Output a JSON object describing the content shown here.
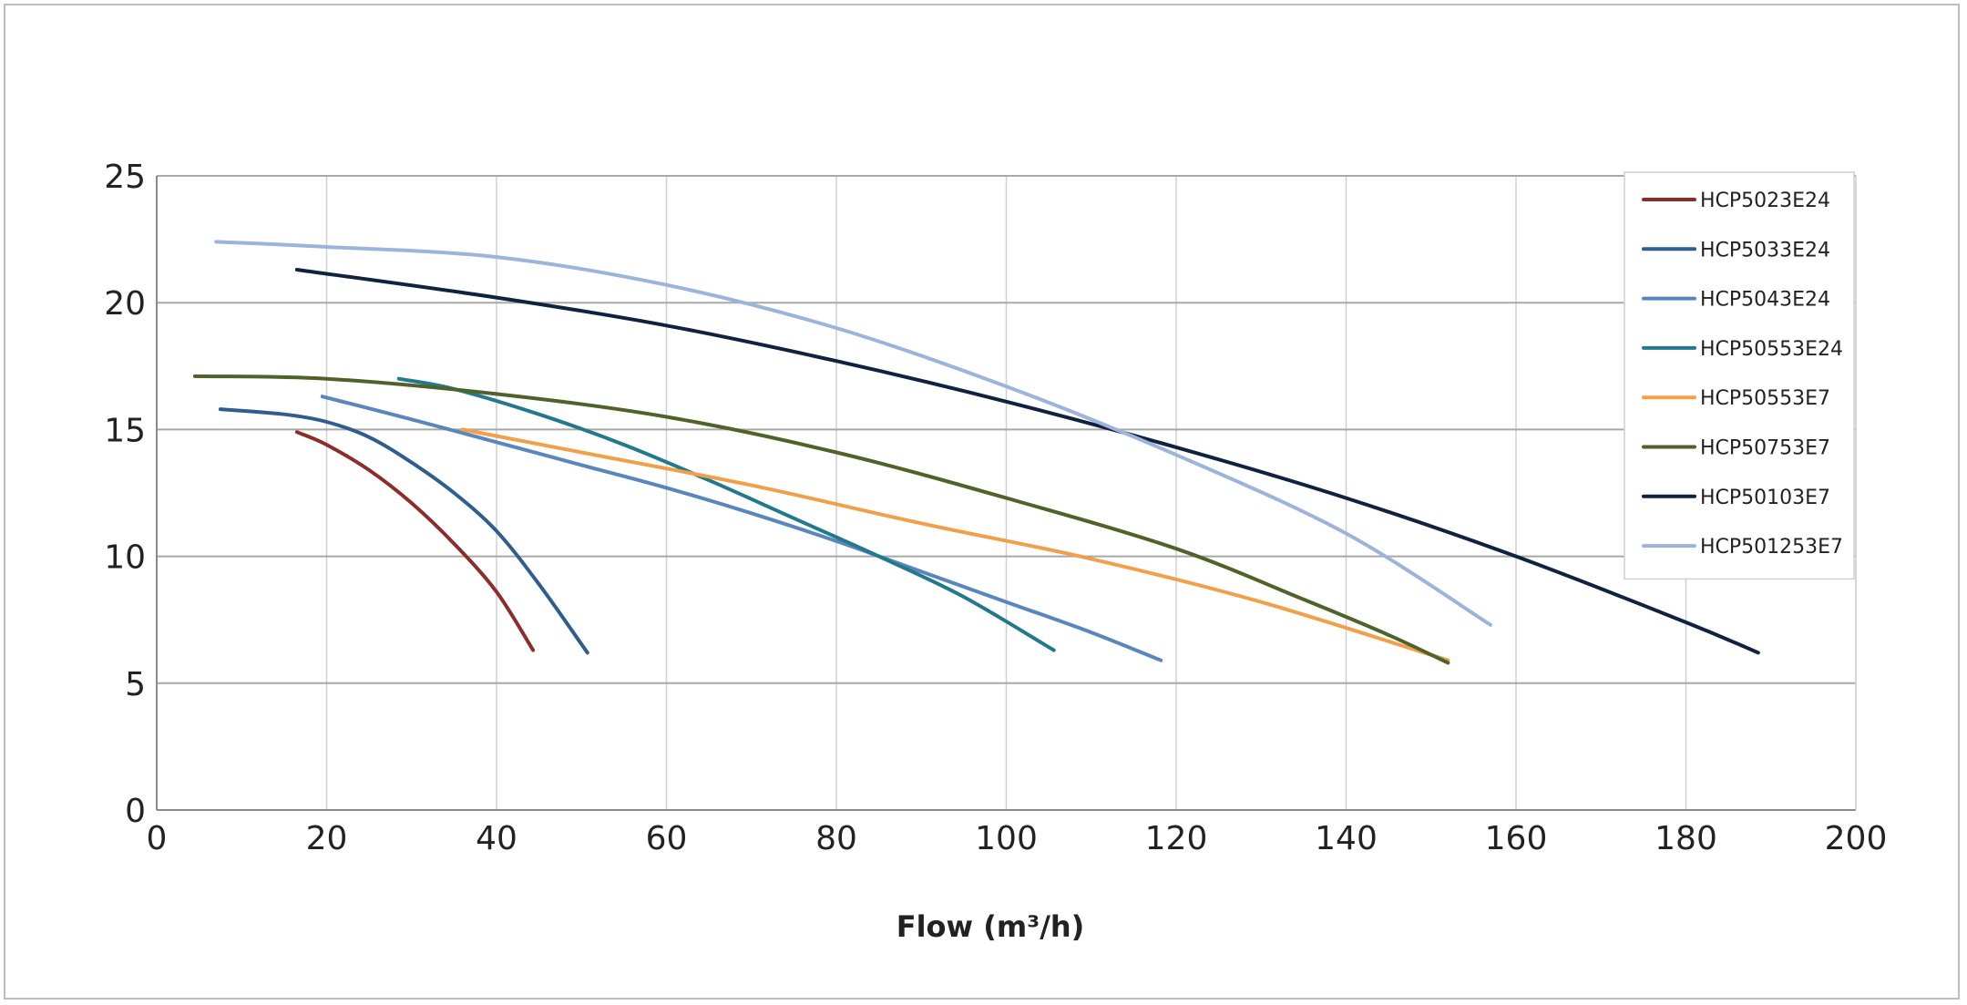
{
  "chart_data": {
    "type": "line",
    "title": "",
    "xlabel": "Flow (m³/h)",
    "ylabel": "",
    "xlim": [
      0,
      200
    ],
    "ylim": [
      0,
      25
    ],
    "xticks": [
      "0",
      "20",
      "40",
      "60",
      "80",
      "100",
      "120",
      "140",
      "160",
      "180",
      "200"
    ],
    "yticks": [
      "0",
      "5",
      "10",
      "15",
      "20",
      "25"
    ],
    "grid": true,
    "legend_position": "top-right",
    "series": [
      {
        "name": "HCP5023E24",
        "color": "#8b2e2b",
        "points": [
          [
            16.5,
            14.9
          ],
          [
            20,
            14.4
          ],
          [
            25,
            13.4
          ],
          [
            30,
            12.1
          ],
          [
            35,
            10.5
          ],
          [
            40,
            8.6
          ],
          [
            44.3,
            6.3
          ]
        ]
      },
      {
        "name": "HCP5033E24",
        "color": "#2e5d8e",
        "points": [
          [
            7.5,
            15.8
          ],
          [
            15,
            15.6
          ],
          [
            20,
            15.3
          ],
          [
            25,
            14.7
          ],
          [
            30,
            13.7
          ],
          [
            35,
            12.5
          ],
          [
            40,
            11.0
          ],
          [
            45,
            8.9
          ],
          [
            50.7,
            6.2
          ]
        ]
      },
      {
        "name": "HCP5043E24",
        "color": "#5a86be",
        "points": [
          [
            19.5,
            16.3
          ],
          [
            30,
            15.4
          ],
          [
            40,
            14.5
          ],
          [
            50,
            13.6
          ],
          [
            60,
            12.7
          ],
          [
            70,
            11.7
          ],
          [
            80,
            10.6
          ],
          [
            90,
            9.4
          ],
          [
            100,
            8.2
          ],
          [
            110,
            7.0
          ],
          [
            118.2,
            5.9
          ]
        ]
      },
      {
        "name": "HCP50553E24",
        "color": "#23798c",
        "points": [
          [
            28.5,
            17.0
          ],
          [
            35,
            16.6
          ],
          [
            45,
            15.6
          ],
          [
            55,
            14.4
          ],
          [
            65,
            13.0
          ],
          [
            75,
            11.5
          ],
          [
            85,
            10.0
          ],
          [
            95,
            8.4
          ],
          [
            105.6,
            6.3
          ]
        ]
      },
      {
        "name": "HCP50553E7",
        "color": "#f0a04b",
        "points": [
          [
            36,
            15.0
          ],
          [
            50,
            14.1
          ],
          [
            70,
            12.8
          ],
          [
            90,
            11.3
          ],
          [
            110,
            9.9
          ],
          [
            130,
            8.2
          ],
          [
            152,
            5.9
          ]
        ]
      },
      {
        "name": "HCP50753E7",
        "color": "#4e6229",
        "points": [
          [
            4.5,
            17.1
          ],
          [
            20,
            17.0
          ],
          [
            40,
            16.4
          ],
          [
            60,
            15.5
          ],
          [
            80,
            14.1
          ],
          [
            100,
            12.3
          ],
          [
            120,
            10.3
          ],
          [
            135,
            8.3
          ],
          [
            145,
            6.9
          ],
          [
            152,
            5.8
          ]
        ]
      },
      {
        "name": "HCP50103E7",
        "color": "#0f2240",
        "points": [
          [
            16.5,
            21.3
          ],
          [
            40,
            20.2
          ],
          [
            60,
            19.1
          ],
          [
            80,
            17.7
          ],
          [
            100,
            16.1
          ],
          [
            120,
            14.3
          ],
          [
            140,
            12.3
          ],
          [
            160,
            10.0
          ],
          [
            180,
            7.4
          ],
          [
            188.5,
            6.2
          ]
        ]
      },
      {
        "name": "HCP501253E7",
        "color": "#9db4da",
        "points": [
          [
            7,
            22.4
          ],
          [
            20,
            22.2
          ],
          [
            40,
            21.8
          ],
          [
            60,
            20.7
          ],
          [
            80,
            19.0
          ],
          [
            100,
            16.7
          ],
          [
            120,
            14.0
          ],
          [
            140,
            10.9
          ],
          [
            157,
            7.3
          ]
        ]
      }
    ]
  }
}
